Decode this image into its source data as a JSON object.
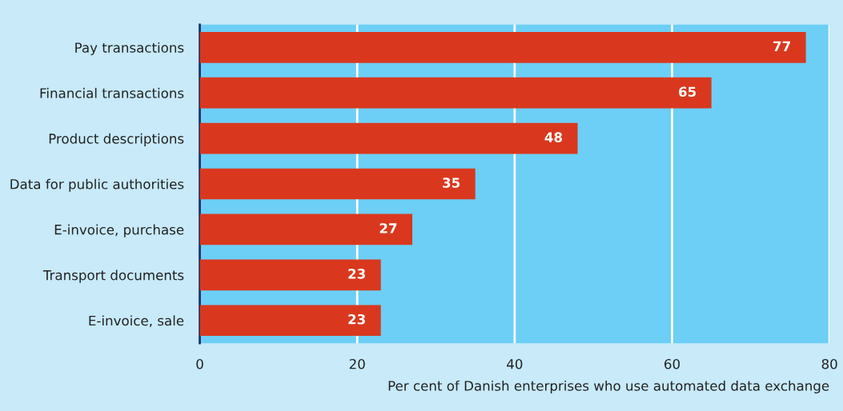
{
  "chart_data": {
    "type": "bar",
    "orientation": "horizontal",
    "categories": [
      "Pay transactions",
      "Financial transactions",
      "Product descriptions",
      "Data for public authorities",
      "E-invoice, purchase",
      "Transport documents",
      "E-invoice, sale"
    ],
    "values": [
      77,
      65,
      48,
      35,
      27,
      23,
      23
    ],
    "color": "#d9381e",
    "xlabel": "Per cent of Danish enterprises who use automated data exchange",
    "xlim": [
      0,
      80
    ],
    "xticks": [
      0,
      20,
      40,
      60,
      80
    ],
    "grid": "x",
    "data_labels": true
  }
}
